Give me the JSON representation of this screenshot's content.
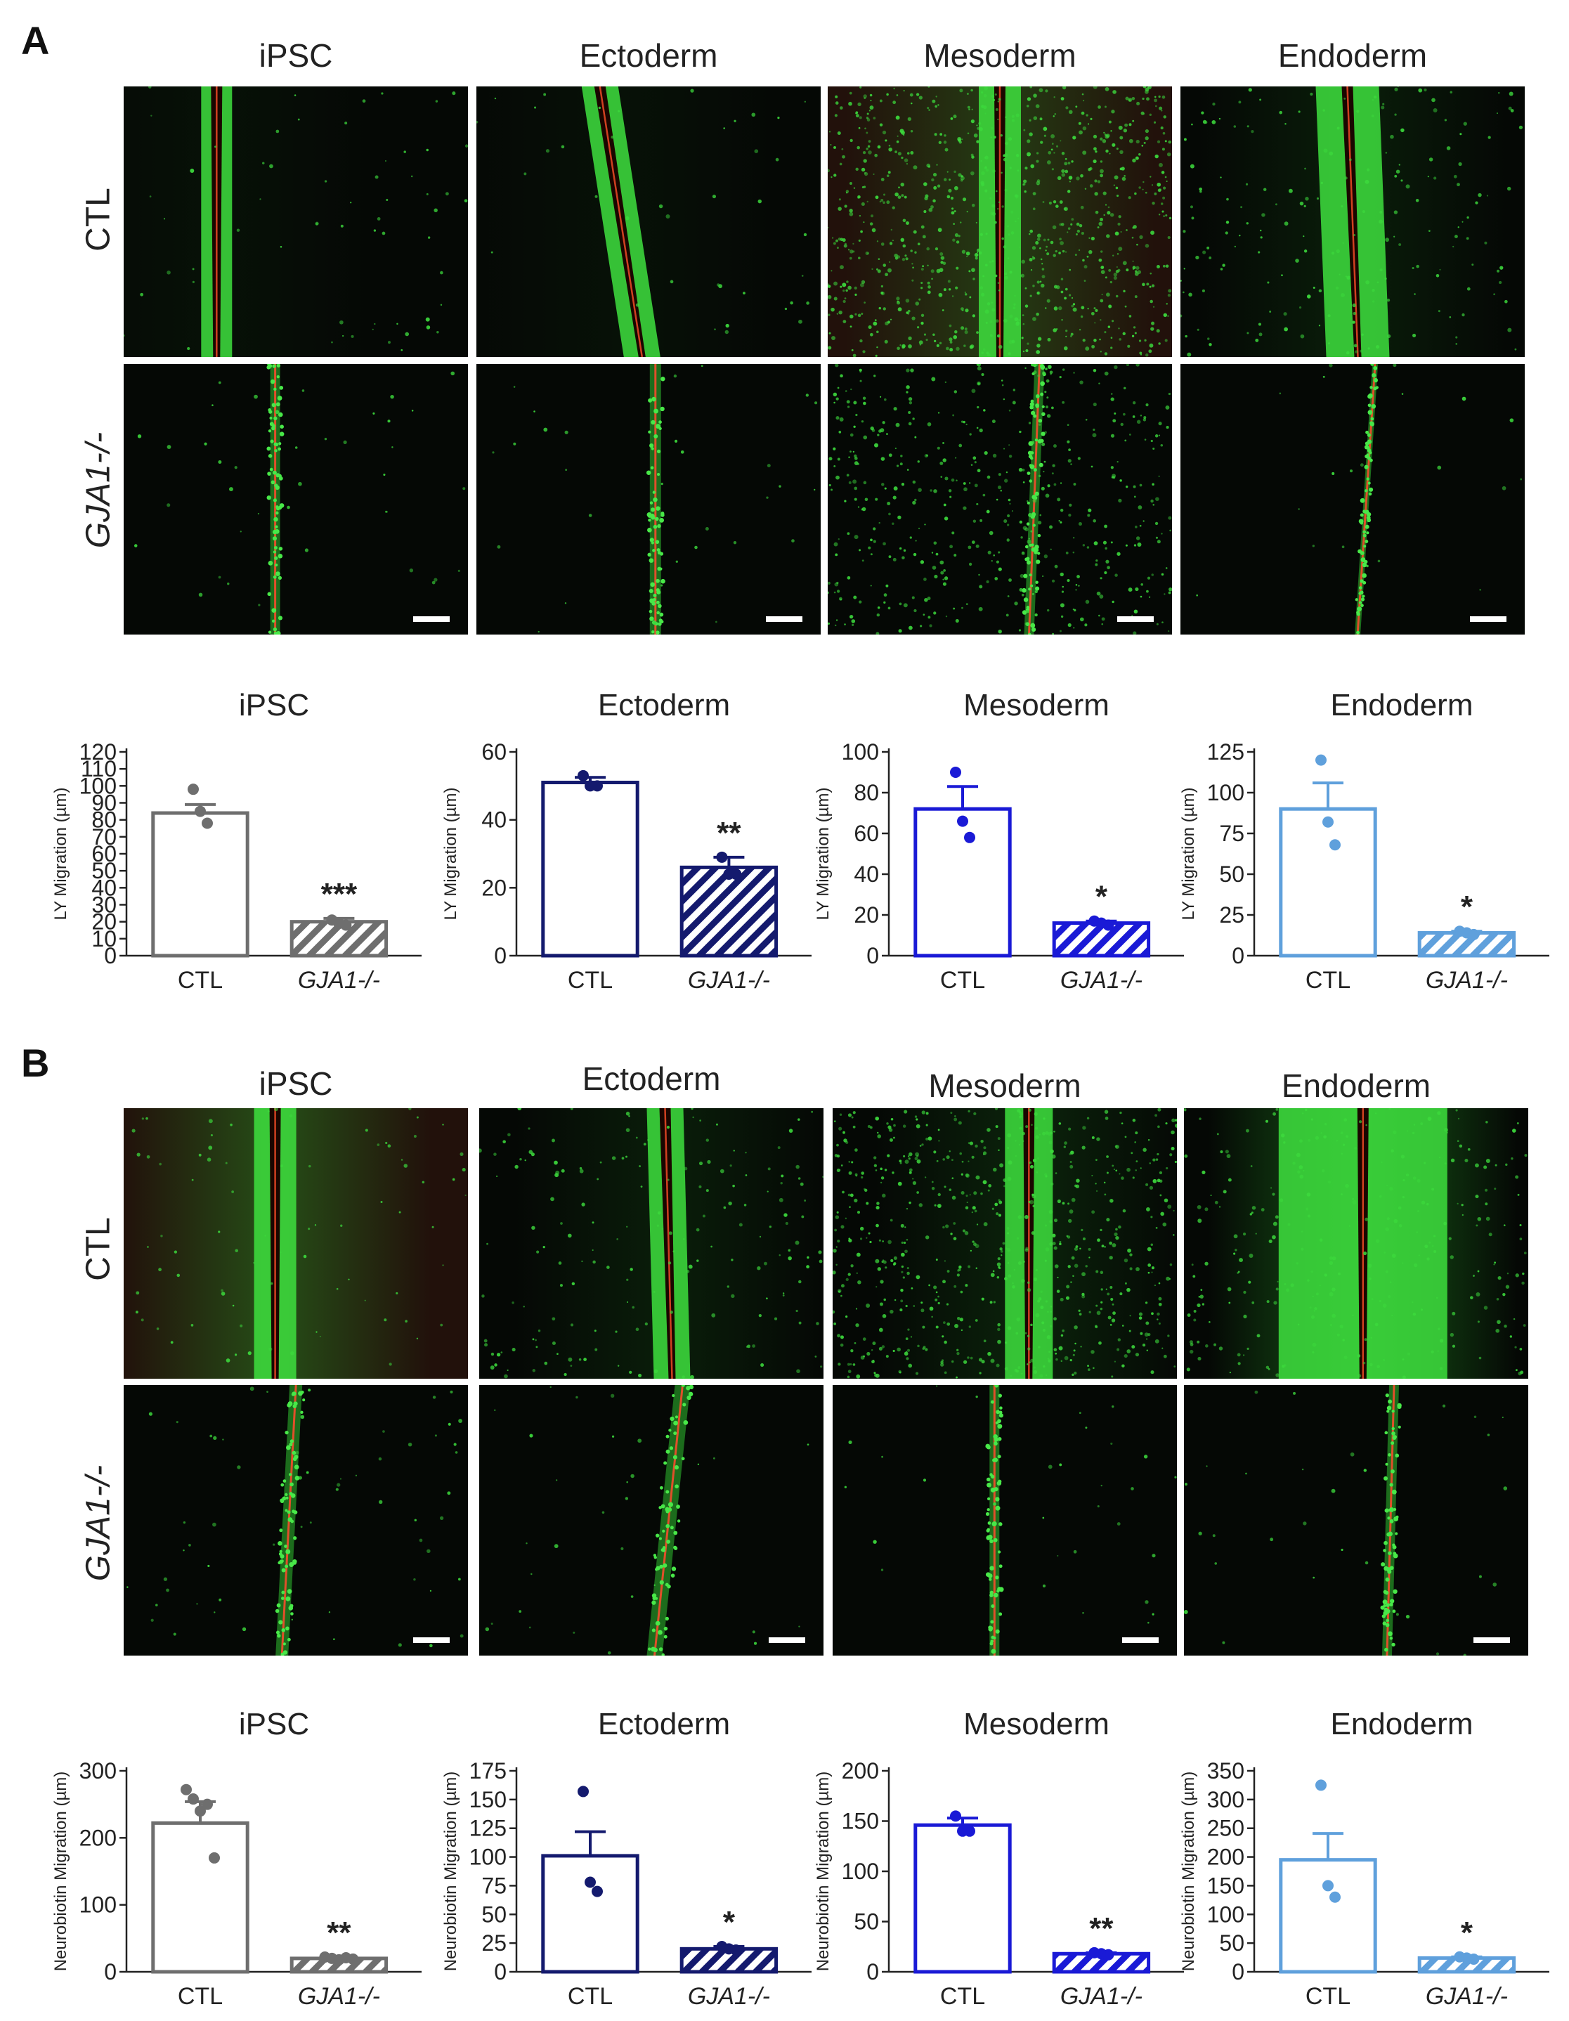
{
  "panels": [
    {
      "letter": "A",
      "columns": [
        "iPSC",
        "Ectoderm",
        "Mesoderm",
        "Endoderm"
      ],
      "rows": [
        "CTL",
        "GJA1-/-"
      ]
    },
    {
      "letter": "B",
      "columns": [
        "iPSC",
        "Ectoderm",
        "Mesoderm",
        "Endoderm"
      ],
      "rows": [
        "CTL",
        "GJA1-/-"
      ]
    }
  ],
  "chart_data": [
    {
      "type": "bar",
      "panel": "A",
      "title": "iPSC",
      "ylabel": "LY Migration (µm)",
      "categories": [
        "CTL",
        "GJA1-/-"
      ],
      "values": [
        84,
        20
      ],
      "sem": [
        5,
        2
      ],
      "points": [
        [
          98,
          85,
          78
        ],
        [
          21,
          19,
          18
        ]
      ],
      "ylim": [
        0,
        120
      ],
      "yticks": [
        0,
        10,
        20,
        30,
        40,
        50,
        60,
        70,
        80,
        90,
        100,
        110,
        120
      ],
      "significance": "***",
      "color": "#6e6e6e"
    },
    {
      "type": "bar",
      "panel": "A",
      "title": "Ectoderm",
      "ylabel": "LY Migration (µm)",
      "categories": [
        "CTL",
        "GJA1-/-"
      ],
      "values": [
        51,
        26
      ],
      "sem": [
        1.5,
        3
      ],
      "points": [
        [
          53,
          50,
          50
        ],
        [
          29,
          24,
          24
        ]
      ],
      "ylim": [
        0,
        60
      ],
      "yticks": [
        0,
        20,
        40,
        60
      ],
      "significance": "**",
      "color": "#141a6e"
    },
    {
      "type": "bar",
      "panel": "A",
      "title": "Mesoderm",
      "ylabel": "LY Migration (µm)",
      "categories": [
        "CTL",
        "GJA1-/-"
      ],
      "values": [
        72,
        16
      ],
      "sem": [
        11,
        1
      ],
      "points": [
        [
          90,
          66,
          58
        ],
        [
          17,
          16,
          15
        ]
      ],
      "ylim": [
        0,
        100
      ],
      "yticks": [
        0,
        20,
        40,
        60,
        80,
        100
      ],
      "significance": "*",
      "color": "#1a1ad6"
    },
    {
      "type": "bar",
      "panel": "A",
      "title": "Endoderm",
      "ylabel": "LY Migration (µm)",
      "categories": [
        "CTL",
        "GJA1-/-"
      ],
      "values": [
        90,
        14
      ],
      "sem": [
        16,
        1
      ],
      "points": [
        [
          120,
          82,
          68
        ],
        [
          15,
          14,
          13
        ]
      ],
      "ylim": [
        0,
        125
      ],
      "yticks": [
        0,
        25,
        50,
        75,
        100,
        125
      ],
      "significance": "*",
      "color": "#5fa0dc"
    },
    {
      "type": "bar",
      "panel": "B",
      "title": "iPSC",
      "ylabel": "Neurobiotin Migration (µm)",
      "categories": [
        "CTL",
        "GJA1-/-"
      ],
      "values": [
        222,
        20
      ],
      "sem": [
        32,
        2
      ],
      "points": [
        [
          272,
          258,
          240,
          250,
          170
        ],
        [
          22,
          20,
          18,
          21,
          19
        ]
      ],
      "ylim": [
        0,
        300
      ],
      "yticks": [
        0,
        100,
        200,
        300
      ],
      "significance": "**",
      "color": "#6e6e6e"
    },
    {
      "type": "bar",
      "panel": "B",
      "title": "Ectoderm",
      "ylabel": "Neurobiotin Migration (µm)",
      "categories": [
        "CTL",
        "GJA1-/-"
      ],
      "values": [
        101,
        20
      ],
      "sem": [
        21,
        2
      ],
      "points": [
        [
          157,
          78,
          70
        ],
        [
          22,
          20,
          19
        ]
      ],
      "ylim": [
        0,
        175
      ],
      "yticks": [
        0,
        25,
        50,
        75,
        100,
        125,
        150,
        175
      ],
      "significance": "*",
      "color": "#141a6e"
    },
    {
      "type": "bar",
      "panel": "B",
      "title": "Mesoderm",
      "ylabel": "Neurobiotin Migration (µm)",
      "categories": [
        "CTL",
        "GJA1-/-"
      ],
      "values": [
        146,
        18
      ],
      "sem": [
        7,
        1
      ],
      "points": [
        [
          155,
          140,
          140
        ],
        [
          19,
          18,
          17
        ]
      ],
      "ylim": [
        0,
        200
      ],
      "yticks": [
        0,
        50,
        100,
        150,
        200
      ],
      "significance": "**",
      "color": "#1a1ad6"
    },
    {
      "type": "bar",
      "panel": "B",
      "title": "Endoderm",
      "ylabel": "Neurobiotin Migration (µm)",
      "categories": [
        "CTL",
        "GJA1-/-"
      ],
      "values": [
        195,
        24
      ],
      "sem": [
        46,
        2
      ],
      "points": [
        [
          325,
          150,
          130
        ],
        [
          26,
          24,
          22
        ]
      ],
      "ylim": [
        0,
        350
      ],
      "yticks": [
        0,
        50,
        100,
        150,
        200,
        250,
        300,
        350
      ],
      "significance": "*",
      "color": "#5fa0dc"
    }
  ]
}
